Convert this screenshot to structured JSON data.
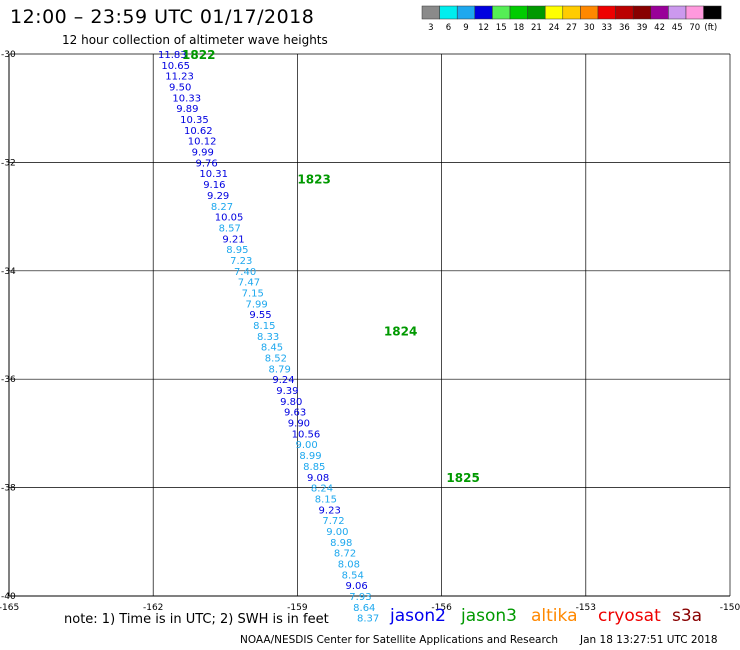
{
  "header": {
    "title": "12:00 – 23:59 UTC 01/17/2018",
    "subtitle": "12 hour collection of altimeter wave heights"
  },
  "colorbar": {
    "units": "(ft)",
    "bins": [
      {
        "label": "3",
        "color": "#8a8a8a"
      },
      {
        "label": "6",
        "color": "#00eeee"
      },
      {
        "label": "9",
        "color": "#1ea8ee"
      },
      {
        "label": "12",
        "color": "#0000e0"
      },
      {
        "label": "15",
        "color": "#55ee55"
      },
      {
        "label": "18",
        "color": "#00cc00"
      },
      {
        "label": "21",
        "color": "#009900"
      },
      {
        "label": "24",
        "color": "#ffff00"
      },
      {
        "label": "27",
        "color": "#ffcc00"
      },
      {
        "label": "30",
        "color": "#ff8800"
      },
      {
        "label": "33",
        "color": "#ee0000"
      },
      {
        "label": "36",
        "color": "#bb0000"
      },
      {
        "label": "39",
        "color": "#880000"
      },
      {
        "label": "42",
        "color": "#990099"
      },
      {
        "label": "45",
        "color": "#cc99ee"
      },
      {
        "label": "70",
        "color": "#ff99dd"
      },
      {
        "label": "",
        "color": "#000000"
      }
    ]
  },
  "footer": {
    "note": "note:  1) Time is in UTC;  2) SWH is in feet",
    "credit": "NOAA/NESDIS Center for Satellite Applications and Research",
    "timestamp": "Jan 18 13:27:51 UTC 2018"
  },
  "satellites": [
    {
      "name": "jason2",
      "color": "#0000ee"
    },
    {
      "name": "jason3",
      "color": "#009900"
    },
    {
      "name": "altika",
      "color": "#ff8800"
    },
    {
      "name": "cryosat",
      "color": "#ee0000"
    },
    {
      "name": "s3a",
      "color": "#880000"
    }
  ],
  "chart_data": {
    "type": "scatter",
    "xlim": [
      -165,
      -150
    ],
    "ylim": [
      -40,
      -30
    ],
    "x_ticks": [
      "-165",
      "-162",
      "-159",
      "-156",
      "-153",
      "-150"
    ],
    "y_ticks": [
      "-30",
      "-32",
      "-34",
      "-36",
      "-38",
      "-40"
    ],
    "time_labels": [
      {
        "text": "1822",
        "lon": -161.4,
        "lat": -30.0
      },
      {
        "text": "1823",
        "lon": -159.0,
        "lat": -32.3
      },
      {
        "text": "1824",
        "lon": -157.2,
        "lat": -35.1
      },
      {
        "text": "1825",
        "lon": -155.9,
        "lat": -37.8
      }
    ],
    "points": [
      {
        "lon": -161.9,
        "lat": -30.0,
        "swh": "11.83",
        "color": "#0000e0"
      },
      {
        "lon": -161.83,
        "lat": -30.2,
        "swh": "10.65",
        "color": "#0000e0"
      },
      {
        "lon": -161.75,
        "lat": -30.4,
        "swh": "11.23",
        "color": "#0000e0"
      },
      {
        "lon": -161.67,
        "lat": -30.6,
        "swh": "9.50",
        "color": "#0000e0"
      },
      {
        "lon": -161.6,
        "lat": -30.8,
        "swh": "10.33",
        "color": "#0000e0"
      },
      {
        "lon": -161.52,
        "lat": -31.0,
        "swh": "9.89",
        "color": "#0000e0"
      },
      {
        "lon": -161.44,
        "lat": -31.2,
        "swh": "10.35",
        "color": "#0000e0"
      },
      {
        "lon": -161.36,
        "lat": -31.4,
        "swh": "10.62",
        "color": "#0000e0"
      },
      {
        "lon": -161.28,
        "lat": -31.6,
        "swh": "10.12",
        "color": "#0000e0"
      },
      {
        "lon": -161.2,
        "lat": -31.8,
        "swh": "9.99",
        "color": "#0000e0"
      },
      {
        "lon": -161.12,
        "lat": -32.0,
        "swh": "9.76",
        "color": "#0000e0"
      },
      {
        "lon": -161.04,
        "lat": -32.2,
        "swh": "10.31",
        "color": "#0000e0"
      },
      {
        "lon": -160.96,
        "lat": -32.4,
        "swh": "9.16",
        "color": "#0000e0"
      },
      {
        "lon": -160.88,
        "lat": -32.6,
        "swh": "9.29",
        "color": "#0000e0"
      },
      {
        "lon": -160.8,
        "lat": -32.8,
        "swh": "8.27",
        "color": "#1ea8ee"
      },
      {
        "lon": -160.72,
        "lat": -33.0,
        "swh": "10.05",
        "color": "#0000e0"
      },
      {
        "lon": -160.64,
        "lat": -33.2,
        "swh": "8.57",
        "color": "#1ea8ee"
      },
      {
        "lon": -160.56,
        "lat": -33.4,
        "swh": "9.21",
        "color": "#0000e0"
      },
      {
        "lon": -160.48,
        "lat": -33.6,
        "swh": "8.95",
        "color": "#1ea8ee"
      },
      {
        "lon": -160.4,
        "lat": -33.8,
        "swh": "7.23",
        "color": "#1ea8ee"
      },
      {
        "lon": -160.32,
        "lat": -34.0,
        "swh": "7.40",
        "color": "#1ea8ee"
      },
      {
        "lon": -160.24,
        "lat": -34.2,
        "swh": "7.47",
        "color": "#1ea8ee"
      },
      {
        "lon": -160.16,
        "lat": -34.4,
        "swh": "7.15",
        "color": "#1ea8ee"
      },
      {
        "lon": -160.08,
        "lat": -34.6,
        "swh": "7.99",
        "color": "#1ea8ee"
      },
      {
        "lon": -160.0,
        "lat": -34.8,
        "swh": "9.55",
        "color": "#0000e0"
      },
      {
        "lon": -159.92,
        "lat": -35.0,
        "swh": "8.15",
        "color": "#1ea8ee"
      },
      {
        "lon": -159.84,
        "lat": -35.2,
        "swh": "8.33",
        "color": "#1ea8ee"
      },
      {
        "lon": -159.76,
        "lat": -35.4,
        "swh": "8.45",
        "color": "#1ea8ee"
      },
      {
        "lon": -159.68,
        "lat": -35.6,
        "swh": "8.52",
        "color": "#1ea8ee"
      },
      {
        "lon": -159.6,
        "lat": -35.8,
        "swh": "8.79",
        "color": "#1ea8ee"
      },
      {
        "lon": -159.52,
        "lat": -36.0,
        "swh": "9.24",
        "color": "#0000e0"
      },
      {
        "lon": -159.44,
        "lat": -36.2,
        "swh": "9.39",
        "color": "#0000e0"
      },
      {
        "lon": -159.36,
        "lat": -36.4,
        "swh": "9.80",
        "color": "#0000e0"
      },
      {
        "lon": -159.28,
        "lat": -36.6,
        "swh": "9.63",
        "color": "#0000e0"
      },
      {
        "lon": -159.2,
        "lat": -36.8,
        "swh": "9.90",
        "color": "#0000e0"
      },
      {
        "lon": -159.12,
        "lat": -37.0,
        "swh": "10.56",
        "color": "#0000e0"
      },
      {
        "lon": -159.04,
        "lat": -37.2,
        "swh": "9.00",
        "color": "#1ea8ee"
      },
      {
        "lon": -158.96,
        "lat": -37.4,
        "swh": "8.99",
        "color": "#1ea8ee"
      },
      {
        "lon": -158.88,
        "lat": -37.6,
        "swh": "8.85",
        "color": "#1ea8ee"
      },
      {
        "lon": -158.8,
        "lat": -37.8,
        "swh": "9.08",
        "color": "#0000e0"
      },
      {
        "lon": -158.72,
        "lat": -38.0,
        "swh": "8.24",
        "color": "#1ea8ee"
      },
      {
        "lon": -158.64,
        "lat": -38.2,
        "swh": "8.15",
        "color": "#1ea8ee"
      },
      {
        "lon": -158.56,
        "lat": -38.4,
        "swh": "9.23",
        "color": "#0000e0"
      },
      {
        "lon": -158.48,
        "lat": -38.6,
        "swh": "7.72",
        "color": "#1ea8ee"
      },
      {
        "lon": -158.4,
        "lat": -38.8,
        "swh": "9.00",
        "color": "#1ea8ee"
      },
      {
        "lon": -158.32,
        "lat": -39.0,
        "swh": "8.98",
        "color": "#1ea8ee"
      },
      {
        "lon": -158.24,
        "lat": -39.2,
        "swh": "8.72",
        "color": "#1ea8ee"
      },
      {
        "lon": -158.16,
        "lat": -39.4,
        "swh": "8.08",
        "color": "#1ea8ee"
      },
      {
        "lon": -158.08,
        "lat": -39.6,
        "swh": "8.54",
        "color": "#1ea8ee"
      },
      {
        "lon": -158.0,
        "lat": -39.8,
        "swh": "9.06",
        "color": "#0000e0"
      },
      {
        "lon": -157.92,
        "lat": -40.0,
        "swh": "7.93",
        "color": "#1ea8ee"
      },
      {
        "lon": -157.84,
        "lat": -40.2,
        "swh": "8.64",
        "color": "#1ea8ee"
      },
      {
        "lon": -157.76,
        "lat": -40.4,
        "swh": "8.37",
        "color": "#1ea8ee"
      }
    ]
  }
}
